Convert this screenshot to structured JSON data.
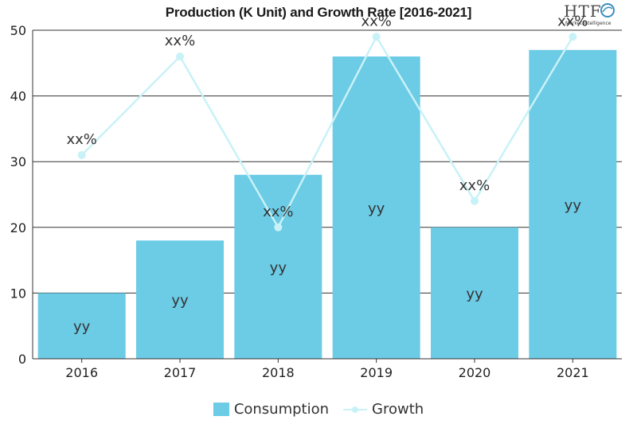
{
  "header": {
    "title": "Production (K Unit) and Growth Rate [2016-2021]",
    "logo_mark": "HTF",
    "logo_sub": "Market Intelligence"
  },
  "colors": {
    "bar": "#6ccbe5",
    "line": "#c8f2f7",
    "axis": "#333333",
    "grid": "#333333"
  },
  "chart_data": {
    "type": "bar",
    "categories": [
      "2016",
      "2017",
      "2018",
      "2019",
      "2020",
      "2021"
    ],
    "series": [
      {
        "name": "Consumption",
        "type": "bar",
        "values": [
          10,
          18,
          28,
          46,
          20,
          47
        ],
        "labels": [
          "yy",
          "yy",
          "yy",
          "yy",
          "yy",
          "yy"
        ]
      },
      {
        "name": "Growth",
        "type": "line",
        "values": [
          31,
          46,
          20,
          49,
          24,
          49
        ],
        "labels": [
          "xx%",
          "xx%",
          "xx%",
          "xx%",
          "xx%",
          "xx%"
        ]
      }
    ],
    "ylim": [
      0,
      50
    ],
    "yticks": [
      0,
      10,
      20,
      30,
      40,
      50
    ],
    "grid": true,
    "legend": "bottom-center"
  },
  "legend": {
    "items": [
      {
        "label": "Consumption"
      },
      {
        "label": "Growth"
      }
    ]
  }
}
